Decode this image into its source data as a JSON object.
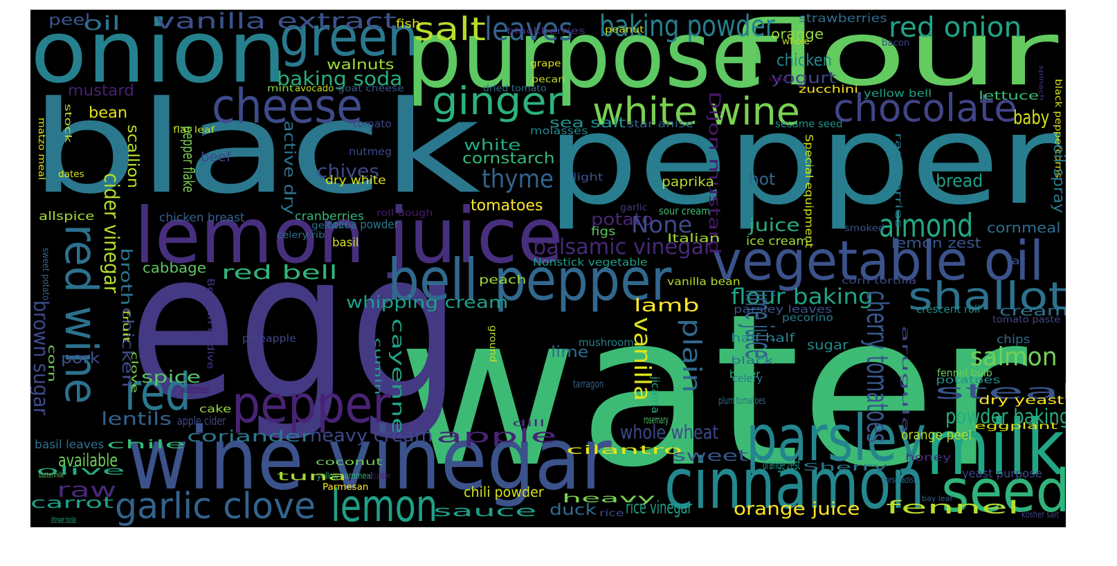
{
  "wordcloud": {
    "background": "#000000",
    "palette": "viridis",
    "words": [
      {
        "text": "water",
        "color": "#3dbb74"
      },
      {
        "text": "egg",
        "color": "#443983"
      },
      {
        "text": "black",
        "color": "#2b788e"
      },
      {
        "text": "pepper",
        "color": "#287d8e"
      },
      {
        "text": "purpose",
        "color": "#5ec962"
      },
      {
        "text": "flour",
        "color": "#63cb5f"
      },
      {
        "text": "onion",
        "color": "#26818e"
      },
      {
        "text": "wine vinegar",
        "color": "#3b528b"
      },
      {
        "text": "lemon juice",
        "color": "#472f7d"
      },
      {
        "text": "green",
        "color": "#2a788e"
      },
      {
        "text": "cheese",
        "color": "#3e4a89"
      },
      {
        "text": "vegetable oil",
        "color": "#3b528b"
      },
      {
        "text": "cinnamon",
        "color": "#23898e"
      },
      {
        "text": "bell pepper",
        "color": "#31688e"
      },
      {
        "text": "milk",
        "color": "#21a685"
      },
      {
        "text": "parsley",
        "color": "#25858e"
      },
      {
        "text": "red wine",
        "color": "#2c718e"
      },
      {
        "text": "red",
        "color": "#2a778e"
      },
      {
        "text": "pepper",
        "color": "#482475"
      },
      {
        "text": "seed",
        "color": "#2fb47c"
      },
      {
        "text": "lemon",
        "color": "#1fa088"
      },
      {
        "text": "white wine",
        "color": "#7ad151"
      },
      {
        "text": "chocolate",
        "color": "#414487"
      },
      {
        "text": "ginger",
        "color": "#2db27d"
      },
      {
        "text": "shallot",
        "color": "#2c728e"
      },
      {
        "text": "garlic clove",
        "color": "#33638d"
      },
      {
        "text": "almond",
        "color": "#22a884"
      },
      {
        "text": "salt",
        "color": "#b5de2b"
      },
      {
        "text": "leaves",
        "color": "#33638d"
      },
      {
        "text": "baking powder",
        "color": "#277f8e"
      },
      {
        "text": "red onion",
        "color": "#20a486"
      },
      {
        "text": "vanilla extract",
        "color": "#3b528b"
      },
      {
        "text": "oil",
        "color": "#2c728e"
      },
      {
        "text": "peel",
        "color": "#39568c"
      },
      {
        "text": "fish",
        "color": "#dde318"
      },
      {
        "text": "strawberries",
        "color": "#2e6f8e"
      },
      {
        "text": "blackberries",
        "color": "#46337f"
      },
      {
        "text": "peanut",
        "color": "#d8e219"
      },
      {
        "text": "orange",
        "color": "#95d840"
      },
      {
        "text": "whole",
        "color": "#bddf26"
      },
      {
        "text": "bacon",
        "color": "#3e4989"
      },
      {
        "text": "chicken",
        "color": "#23898e"
      },
      {
        "text": "walnuts",
        "color": "#a2da37"
      },
      {
        "text": "baking soda",
        "color": "#29af7f"
      },
      {
        "text": "yogurt",
        "color": "#3f4788"
      },
      {
        "text": "grape",
        "color": "#d8e219"
      },
      {
        "text": "kale",
        "color": "#440154"
      },
      {
        "text": "spinach",
        "color": "#443a83"
      },
      {
        "text": "mustard",
        "color": "#482173"
      },
      {
        "text": "mint",
        "color": "#8fd744"
      },
      {
        "text": "avocado",
        "color": "#c2df23"
      },
      {
        "text": "goat cheese",
        "color": "#38588c"
      },
      {
        "text": "pecan",
        "color": "#c2df23"
      },
      {
        "text": "dried tomato",
        "color": "#2e6f8e"
      },
      {
        "text": "zucchini",
        "color": "#fde725"
      },
      {
        "text": "yellow bell",
        "color": "#1fa287"
      },
      {
        "text": "lettuce",
        "color": "#3dbc74"
      },
      {
        "text": "bean",
        "color": "#e5e419"
      },
      {
        "text": "sea salt",
        "color": "#21918c"
      },
      {
        "text": "star anise",
        "color": "#33638d"
      },
      {
        "text": "sesame seed",
        "color": "#20928c"
      },
      {
        "text": "baby",
        "color": "#d5e21a"
      },
      {
        "text": "black peppercorns",
        "color": "#d2e21b"
      },
      {
        "text": "matzo meal",
        "color": "#dde318"
      },
      {
        "text": "stock",
        "color": "#b8de29"
      },
      {
        "text": "flat leaf",
        "color": "#bddf26"
      },
      {
        "text": "tomato",
        "color": "#3f4788"
      },
      {
        "text": "molasses",
        "color": "#24878e"
      },
      {
        "text": "white",
        "color": "#22a884"
      },
      {
        "text": "cornstarch",
        "color": "#35b779"
      },
      {
        "text": "pepper flake",
        "color": "#7ad151"
      },
      {
        "text": "scallion",
        "color": "#b8de29"
      },
      {
        "text": "active dry",
        "color": "#2c728e"
      },
      {
        "text": "Dijon mustard",
        "color": "#481a6c"
      },
      {
        "text": "oil spray",
        "color": "#2a788e"
      },
      {
        "text": "raspberries",
        "color": "#287c8e"
      },
      {
        "text": "Special equipment",
        "color": "#d0e11c"
      },
      {
        "text": "beef",
        "color": "#3f4788"
      },
      {
        "text": "chives",
        "color": "#3e4a89"
      },
      {
        "text": "thyme",
        "color": "#33638d"
      },
      {
        "text": "nutmeg",
        "color": "#3f4788"
      },
      {
        "text": "dates",
        "color": "#dde318"
      },
      {
        "text": "dry white",
        "color": "#d8e219"
      },
      {
        "text": "light",
        "color": "#3b528b"
      },
      {
        "text": "paprika",
        "color": "#b8de29"
      },
      {
        "text": "hot",
        "color": "#306a8e"
      },
      {
        "text": "bread",
        "color": "#1f9e89"
      },
      {
        "text": "tomatoes",
        "color": "#fde725"
      },
      {
        "text": "cider vinegar",
        "color": "#b5de2b"
      },
      {
        "text": "garlic",
        "color": "#443a83"
      },
      {
        "text": "sour cream",
        "color": "#3dbc74"
      },
      {
        "text": "allspice",
        "color": "#a8db34"
      },
      {
        "text": "chicken breast",
        "color": "#34618d"
      },
      {
        "text": "roll dough",
        "color": "#481b6d"
      },
      {
        "text": "cranberries",
        "color": "#34b679"
      },
      {
        "text": "cocoa powder",
        "color": "#2a788e"
      },
      {
        "text": "gelatin",
        "color": "#2c728e"
      },
      {
        "text": "potato",
        "color": "#482677"
      },
      {
        "text": "figs",
        "color": "#5ec962"
      },
      {
        "text": "None",
        "color": "#3e4a89"
      },
      {
        "text": "juice",
        "color": "#27ad81"
      },
      {
        "text": "cornmeal",
        "color": "#2d708e"
      },
      {
        "text": "smoked",
        "color": "#3b528b"
      },
      {
        "text": "celery rib",
        "color": "#2c728e"
      },
      {
        "text": "basil",
        "color": "#d8e219"
      },
      {
        "text": "Italian",
        "color": "#a8db34"
      },
      {
        "text": "ice cream",
        "color": "#a2da37"
      },
      {
        "text": "lemon zest",
        "color": "#39568c"
      },
      {
        "text": "balsamic vinegar",
        "color": "#482878"
      },
      {
        "text": "broth",
        "color": "#2c728e"
      },
      {
        "text": "Nonstick vegetable",
        "color": "#1f9e89"
      },
      {
        "text": "fat",
        "color": "#38588c"
      },
      {
        "text": "sweet potato",
        "color": "#33638d"
      },
      {
        "text": "cabbage",
        "color": "#5ec962"
      },
      {
        "text": "red bell",
        "color": "#31b57b"
      },
      {
        "text": "peach",
        "color": "#9bd93c"
      },
      {
        "text": "vanilla bean",
        "color": "#b5de2b"
      },
      {
        "text": "corn tortilla",
        "color": "#3e4989"
      },
      {
        "text": "flour baking",
        "color": "#20a386"
      },
      {
        "text": "whipping cream",
        "color": "#1fa088"
      },
      {
        "text": "lamb",
        "color": "#fde725"
      },
      {
        "text": "parsley leaves",
        "color": "#3b528b"
      },
      {
        "text": "crescent roll",
        "color": "#21918c"
      },
      {
        "text": "cream",
        "color": "#2c728e"
      },
      {
        "text": "tomato paste",
        "color": "#3e4989"
      },
      {
        "text": "brown sugar",
        "color": "#3e4a89"
      },
      {
        "text": "corn",
        "color": "#6ece58"
      },
      {
        "text": "chicken",
        "color": "#3e4a89"
      },
      {
        "text": "fruit",
        "color": "#b5de2b"
      },
      {
        "text": "clove",
        "color": "#7fd34e"
      },
      {
        "text": "Belgian endive",
        "color": "#443983"
      },
      {
        "text": "pineapple",
        "color": "#3f4788"
      },
      {
        "text": "mushroom",
        "color": "#25848e"
      },
      {
        "text": "ground",
        "color": "#c2df23"
      },
      {
        "text": "vanilla",
        "color": "#dde318"
      },
      {
        "text": "pecorino",
        "color": "#287d8e"
      },
      {
        "text": "half half",
        "color": "#26828e"
      },
      {
        "text": "sugar",
        "color": "#23898e"
      },
      {
        "text": "chips",
        "color": "#2e6e8e"
      },
      {
        "text": "pork",
        "color": "#3b528b"
      },
      {
        "text": "lime",
        "color": "#2e6e8e"
      },
      {
        "text": "black",
        "color": "#2e6f8e"
      },
      {
        "text": "butter",
        "color": "#35b779"
      },
      {
        "text": "salmon",
        "color": "#73d056"
      },
      {
        "text": "spice",
        "color": "#56c667"
      },
      {
        "text": "watercress",
        "color": "#481467"
      },
      {
        "text": "cumin",
        "color": "#1f9e89"
      },
      {
        "text": "plain",
        "color": "#306a8e"
      },
      {
        "text": "celery",
        "color": "#2a788e"
      },
      {
        "text": "lime juice",
        "color": "#34618d"
      },
      {
        "text": "cherry tomatoes",
        "color": "#39568c"
      },
      {
        "text": "arugula",
        "color": "#3f4788"
      },
      {
        "text": "fennel bulb",
        "color": "#6ece58"
      },
      {
        "text": "potatoes",
        "color": "#228c8d"
      },
      {
        "text": "steak",
        "color": "#39568c"
      },
      {
        "text": "cake",
        "color": "#95d840"
      },
      {
        "text": "tarragon",
        "color": "#33638d"
      },
      {
        "text": "jicama",
        "color": "#22a884"
      },
      {
        "text": "plum tomatoes",
        "color": "#2e6e8e"
      },
      {
        "text": "dry yeast",
        "color": "#fde725"
      },
      {
        "text": "powder baking",
        "color": "#26ad81"
      },
      {
        "text": "cayenne",
        "color": "#20a386"
      },
      {
        "text": "lentils",
        "color": "#33638d"
      },
      {
        "text": "apple cider",
        "color": "#3e4a89"
      },
      {
        "text": "coriander",
        "color": "#2a788e"
      },
      {
        "text": "heavy cream",
        "color": "#3e4989"
      },
      {
        "text": "apple",
        "color": "#482475"
      },
      {
        "text": "dill",
        "color": "#472c7a"
      },
      {
        "text": "rosemary",
        "color": "#4ac16d"
      },
      {
        "text": "whole wheat",
        "color": "#3e4989"
      },
      {
        "text": "eggplant",
        "color": "#dde318"
      },
      {
        "text": "orange peel",
        "color": "#b8de29"
      },
      {
        "text": "basil leaves",
        "color": "#2c728e"
      },
      {
        "text": "chile",
        "color": "#35b779"
      },
      {
        "text": "available",
        "color": "#6ece58"
      },
      {
        "text": "coconut",
        "color": "#6ece58"
      },
      {
        "text": "yellow cornmeal",
        "color": "#31b57b"
      },
      {
        "text": "cilantro",
        "color": "#e5e419"
      },
      {
        "text": "sweet",
        "color": "#38588c"
      },
      {
        "text": "orange zest",
        "color": "#1f9e89"
      },
      {
        "text": "Sherry",
        "color": "#2c728e"
      },
      {
        "text": "honey",
        "color": "#46327e"
      },
      {
        "text": "horseradish",
        "color": "#306a8e"
      },
      {
        "text": "yeast purpose",
        "color": "#3f4788"
      },
      {
        "text": "olive",
        "color": "#25ab82"
      },
      {
        "text": "raw",
        "color": "#482878"
      },
      {
        "text": "buttermilk",
        "color": "#5ec962"
      },
      {
        "text": "tuna",
        "color": "#a8db34"
      },
      {
        "text": "cucumber",
        "color": "#48186a"
      },
      {
        "text": "Parmesan",
        "color": "#fde725"
      },
      {
        "text": "chili powder",
        "color": "#d2e21b"
      },
      {
        "text": "heavy",
        "color": "#7ad151"
      },
      {
        "text": "bay leaf",
        "color": "#33638d"
      },
      {
        "text": "carrot",
        "color": "#1fa088"
      },
      {
        "text": "rice vinegar",
        "color": "#1fa088"
      },
      {
        "text": "orange juice",
        "color": "#fde725"
      },
      {
        "text": "fennel",
        "color": "#b5de2b"
      },
      {
        "text": "kosher salt",
        "color": "#3f4788"
      },
      {
        "text": "sauce",
        "color": "#1f9e89"
      },
      {
        "text": "duck",
        "color": "#306a8e"
      },
      {
        "text": "rice",
        "color": "#3e4a89"
      },
      {
        "text": "bittersweet chocolate",
        "color": "#1fa187"
      }
    ]
  }
}
